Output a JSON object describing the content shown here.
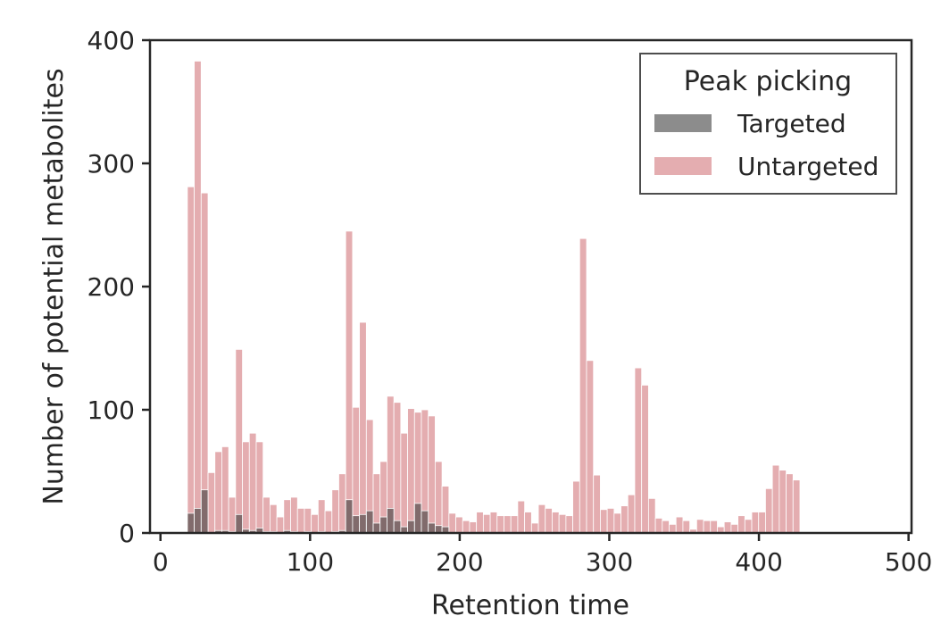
{
  "chart_data": {
    "type": "bar",
    "xlabel": "Retention time",
    "ylabel": "Number of potential metabolites",
    "xlim": [
      -7,
      502
    ],
    "ylim": [
      0,
      400
    ],
    "xticks": [
      0,
      100,
      200,
      300,
      400,
      500
    ],
    "yticks": [
      0,
      100,
      200,
      300,
      400
    ],
    "grid": false,
    "legend": {
      "title": "Peak picking",
      "placement": "top-right",
      "entries": [
        "Targeted",
        "Untargeted"
      ]
    },
    "bin_start": 18,
    "bin_width": 4.6,
    "series": [
      {
        "name": "Untargeted",
        "color": "#d98a8e",
        "opacity": 0.7,
        "values": [
          281,
          383,
          276,
          49,
          66,
          70,
          29,
          149,
          74,
          81,
          74,
          29,
          23,
          13,
          27,
          29,
          20,
          20,
          15,
          27,
          18,
          35,
          48,
          245,
          102,
          171,
          92,
          48,
          58,
          111,
          106,
          81,
          101,
          98,
          100,
          95,
          58,
          38,
          16,
          13,
          10,
          9,
          17,
          15,
          17,
          14,
          14,
          14,
          26,
          17,
          8,
          23,
          20,
          17,
          15,
          14,
          42,
          239,
          140,
          47,
          19,
          20,
          16,
          22,
          31,
          134,
          120,
          28,
          12,
          10,
          7,
          13,
          10,
          3,
          11,
          10,
          10,
          5,
          9,
          7,
          14,
          11,
          17,
          17,
          36,
          55,
          51,
          48,
          43
        ]
      },
      {
        "name": "Targeted",
        "color": "#404040",
        "opacity": 0.6,
        "values": [
          16,
          20,
          35,
          0,
          2,
          2,
          1,
          15,
          3,
          2,
          4,
          1,
          1,
          0,
          2,
          1,
          0,
          1,
          0,
          1,
          0,
          1,
          2,
          27,
          14,
          15,
          18,
          8,
          13,
          20,
          10,
          5,
          10,
          24,
          18,
          8,
          6,
          5,
          0,
          0,
          0,
          0,
          0,
          0,
          0,
          0,
          0,
          0,
          0,
          0,
          0,
          0,
          0,
          0,
          0,
          0,
          0,
          0,
          0,
          0,
          0,
          0,
          0,
          0,
          0,
          0,
          0,
          0,
          0,
          0,
          0,
          0,
          0,
          0,
          0,
          0,
          0,
          0,
          0,
          0,
          0,
          0,
          0,
          0,
          0,
          0,
          0,
          0,
          0
        ]
      }
    ]
  }
}
